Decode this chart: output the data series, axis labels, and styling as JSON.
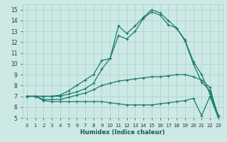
{
  "xlabel": "Humidex (Indice chaleur)",
  "background_color": "#cce9e5",
  "grid_color": "#aacfcb",
  "line_color": "#1a7a6e",
  "xlim": [
    -0.5,
    23.5
  ],
  "ylim": [
    5,
    15.5
  ],
  "xticks": [
    0,
    1,
    2,
    3,
    4,
    5,
    6,
    7,
    8,
    9,
    10,
    11,
    12,
    13,
    14,
    15,
    16,
    17,
    18,
    19,
    20,
    21,
    22,
    23
  ],
  "yticks": [
    5,
    6,
    7,
    8,
    9,
    10,
    11,
    12,
    13,
    14,
    15
  ],
  "series": [
    [
      7.0,
      7.0,
      7.0,
      7.0,
      7.1,
      7.5,
      8.0,
      8.5,
      9.0,
      10.3,
      10.5,
      13.5,
      12.8,
      13.5,
      14.3,
      15.0,
      14.7,
      14.0,
      13.3,
      12.2,
      10.2,
      9.0,
      7.2,
      5.2
    ],
    [
      7.0,
      7.0,
      7.0,
      7.0,
      7.0,
      7.2,
      7.4,
      7.7,
      8.2,
      9.5,
      10.5,
      12.6,
      12.3,
      13.0,
      14.2,
      14.8,
      14.5,
      13.6,
      13.3,
      12.1,
      10.0,
      8.3,
      7.5,
      5.2
    ],
    [
      7.0,
      7.0,
      6.7,
      6.7,
      6.7,
      6.9,
      7.1,
      7.3,
      7.6,
      8.0,
      8.2,
      8.4,
      8.5,
      8.6,
      8.7,
      8.8,
      8.8,
      8.9,
      9.0,
      9.0,
      8.8,
      8.5,
      7.8,
      5.0
    ],
    [
      7.0,
      7.0,
      6.6,
      6.5,
      6.5,
      6.5,
      6.5,
      6.5,
      6.5,
      6.5,
      6.4,
      6.3,
      6.2,
      6.2,
      6.2,
      6.2,
      6.3,
      6.4,
      6.5,
      6.6,
      6.8,
      5.2,
      7.0,
      5.0
    ]
  ]
}
